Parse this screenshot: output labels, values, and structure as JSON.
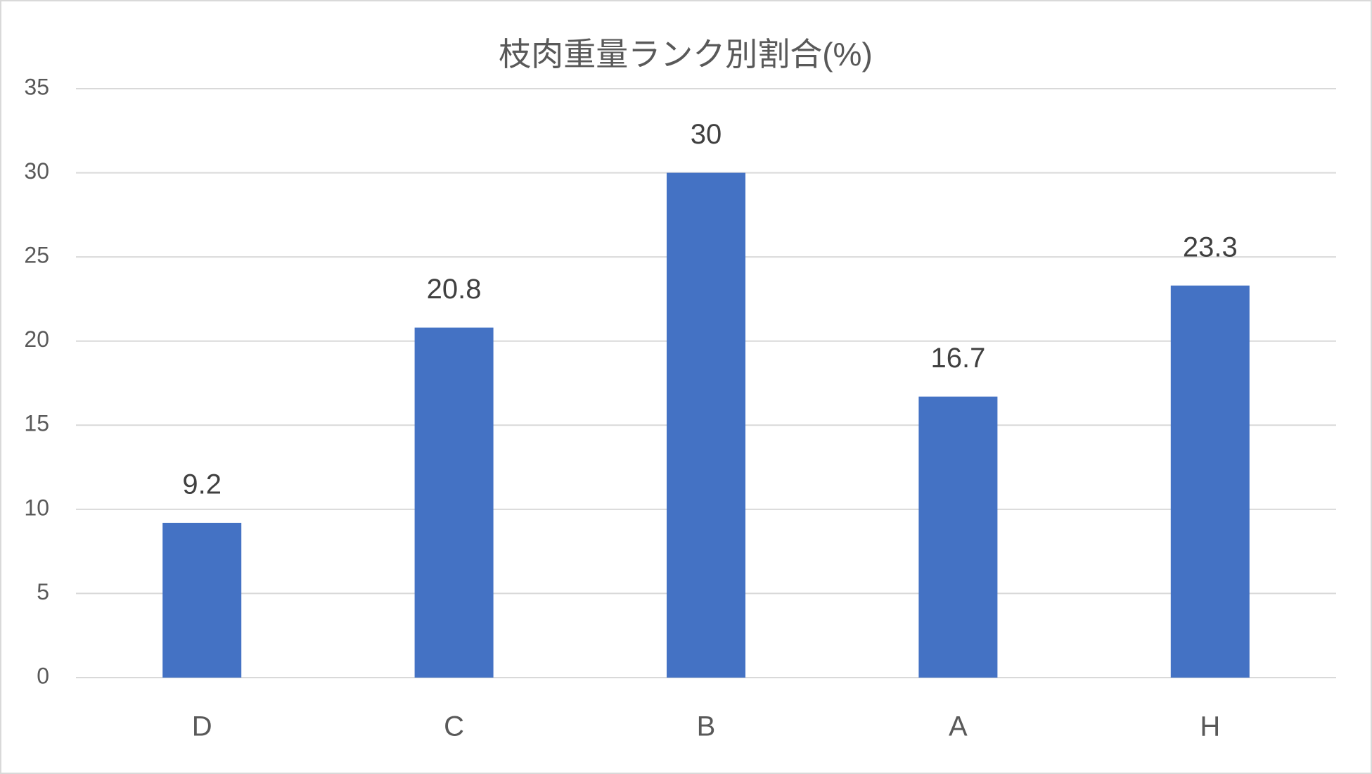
{
  "chart_data": {
    "type": "bar",
    "title": "枝肉重量ランク別割合(%)",
    "categories": [
      "D",
      "C",
      "B",
      "A",
      "H"
    ],
    "values": [
      9.2,
      20.8,
      30,
      16.7,
      23.3
    ],
    "color": "#4472c4",
    "ylim": [
      0,
      35
    ],
    "yticks": [
      0,
      5,
      10,
      15,
      20,
      25,
      30,
      35
    ],
    "grid": true
  }
}
